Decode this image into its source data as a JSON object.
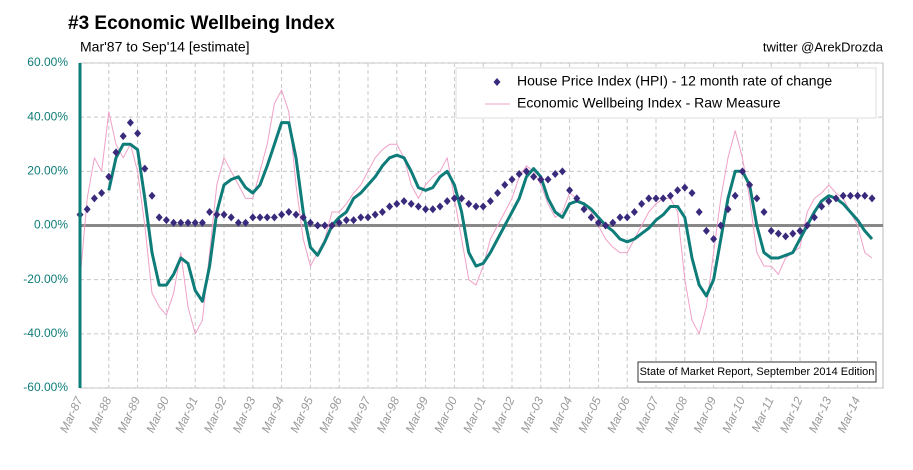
{
  "chart_data": {
    "type": "line",
    "title": "#3 Economic Wellbeing Index",
    "subtitle": "Mar'87 to Sep'14 [estimate]",
    "annotations": [
      "twitter @ArekDrozda",
      "State of Market Report, September 2014 Edition"
    ],
    "categories": [
      "Mar-87",
      null,
      null,
      null,
      "Mar-88",
      null,
      null,
      null,
      "Mar-89",
      null,
      null,
      null,
      "Mar-90",
      null,
      null,
      null,
      "Mar-91",
      null,
      null,
      null,
      "Mar-92",
      null,
      null,
      null,
      "Mar-93",
      null,
      null,
      null,
      "Mar-94",
      null,
      null,
      null,
      "Mar-95",
      null,
      null,
      null,
      "Mar-96",
      null,
      null,
      null,
      "Mar-97",
      null,
      null,
      null,
      "Mar-98",
      null,
      null,
      null,
      "Mar-99",
      null,
      null,
      null,
      "Mar-00",
      null,
      null,
      null,
      "Mar-01",
      null,
      null,
      null,
      "Mar-02",
      null,
      null,
      null,
      "Mar-03",
      null,
      null,
      null,
      "Mar-04",
      null,
      null,
      null,
      "Mar-05",
      null,
      null,
      null,
      "Mar-06",
      null,
      null,
      null,
      "Mar-07",
      null,
      null,
      null,
      "Mar-08",
      null,
      null,
      null,
      "Mar-09",
      null,
      null,
      null,
      "Mar-10",
      null,
      null,
      null,
      "Mar-11",
      null,
      null,
      null,
      "Mar-12",
      null,
      null,
      null,
      "Mar-13",
      null,
      null,
      null,
      "Mar-14",
      null,
      null
    ],
    "series": [
      {
        "name": "Economic Wellbeing Index - Raw Measure",
        "color": "#f0a0c8",
        "style": "line",
        "width": 1,
        "values": [
          -20,
          10,
          25,
          20,
          42,
          30,
          25,
          30,
          20,
          0,
          -25,
          -30,
          -33,
          -25,
          -10,
          -30,
          -40,
          -35,
          -10,
          15,
          25,
          20,
          15,
          10,
          10,
          20,
          30,
          45,
          50,
          42,
          15,
          -5,
          -15,
          -10,
          -5,
          5,
          5,
          8,
          12,
          15,
          20,
          25,
          28,
          30,
          30,
          25,
          15,
          10,
          15,
          18,
          20,
          25,
          10,
          -5,
          -20,
          -22,
          -15,
          -5,
          0,
          5,
          10,
          18,
          22,
          20,
          15,
          8,
          3,
          5,
          12,
          10,
          8,
          5,
          0,
          -5,
          -8,
          -10,
          -10,
          -5,
          0,
          5,
          8,
          10,
          10,
          5,
          -20,
          -35,
          -40,
          -30,
          -10,
          10,
          25,
          35,
          25,
          10,
          -10,
          -15,
          -15,
          -18,
          -12,
          -10,
          -8,
          5,
          10,
          12,
          15,
          12,
          10,
          5,
          0,
          -10,
          -12
        ]
      },
      {
        "color": "#0e7c78",
        "style": "line",
        "width": 3,
        "values": [
          null,
          null,
          null,
          null,
          13,
          25,
          30,
          30,
          28,
          10,
          -10,
          -22,
          -22,
          -18,
          -12,
          -14,
          -24,
          -28,
          -15,
          5,
          15,
          17,
          18,
          14,
          12,
          15,
          22,
          30,
          38,
          38,
          25,
          5,
          -8,
          -11,
          -6,
          0,
          3,
          5,
          10,
          12,
          15,
          18,
          22,
          25,
          26,
          25,
          20,
          14,
          13,
          14,
          18,
          20,
          15,
          5,
          -10,
          -15,
          -14,
          -10,
          -5,
          0,
          5,
          10,
          18,
          21,
          18,
          10,
          5,
          3,
          8,
          9,
          8,
          6,
          3,
          0,
          -2,
          -5,
          -6,
          -5,
          -3,
          -1,
          2,
          4,
          7,
          7,
          3,
          -12,
          -22,
          -26,
          -20,
          -5,
          10,
          20,
          20,
          15,
          0,
          -10,
          -12,
          -12,
          -11,
          -10,
          -5,
          0,
          5,
          9,
          11,
          10,
          8,
          5,
          2,
          -2,
          -5
        ]
      },
      {
        "name": "House Price Index (HPI) - 12 month rate of change",
        "color": "#3a2a7c",
        "style": "diamond",
        "values": [
          4,
          6,
          10,
          12,
          18,
          27,
          33,
          38,
          34,
          21,
          11,
          3,
          2,
          1,
          1,
          1,
          1,
          1,
          5,
          4,
          4,
          3,
          1,
          1,
          3,
          3,
          3,
          3,
          4,
          5,
          4,
          3,
          1,
          0,
          0,
          0,
          1,
          2,
          2,
          3,
          3,
          4,
          5,
          7,
          8,
          9,
          8,
          7,
          6,
          6,
          7,
          9,
          10,
          10,
          8,
          7,
          7,
          9,
          12,
          15,
          17,
          19,
          20,
          18,
          17,
          17,
          19,
          20,
          13,
          10,
          6,
          3,
          1,
          0,
          1,
          3,
          3,
          5,
          8,
          10,
          10,
          10,
          11,
          13,
          14,
          12,
          5,
          -2,
          -5,
          0,
          6,
          11,
          20,
          15,
          10,
          5,
          -2,
          -3,
          -4,
          -3,
          -2,
          0,
          3,
          7,
          9,
          10,
          11,
          11,
          11,
          11,
          10
        ]
      }
    ],
    "legend_order": [
      2,
      0
    ],
    "ylim": [
      -60,
      60
    ],
    "yticks": [
      {
        "value": -60,
        "label": "-60.00%"
      },
      {
        "value": -40,
        "label": "-40.00%"
      },
      {
        "value": -20,
        "label": "-20.00%"
      },
      {
        "value": 0,
        "label": "0.00%"
      },
      {
        "value": 20,
        "label": "20.00%"
      },
      {
        "value": 40,
        "label": "40.00%"
      },
      {
        "value": 60,
        "label": "60.00%"
      }
    ],
    "grid": true,
    "legend": "upper right",
    "axis_color": "#0e7c78"
  }
}
